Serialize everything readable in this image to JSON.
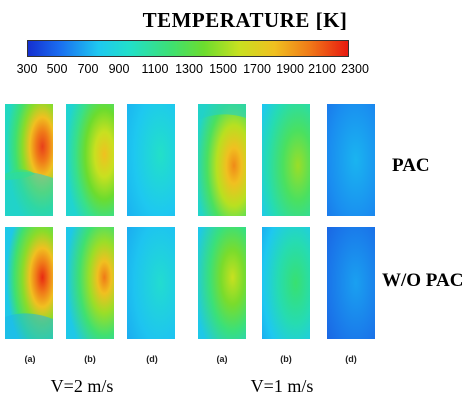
{
  "title": "TEMPERATURE [K]",
  "colorbar": {
    "ticks": [
      "300",
      "500",
      "700",
      "900",
      "1100",
      "1300",
      "1500",
      "1700",
      "1900",
      "2100",
      "2300"
    ]
  },
  "rows": [
    "PAC",
    "W/O PAC"
  ],
  "sublabels": [
    "(a)",
    "(b)",
    "(d)",
    "(a)",
    "(b)",
    "(d)"
  ],
  "velocities": [
    "V=2 m/s",
    "V=1 m/s"
  ],
  "colors": {
    "cold": "#1530d0",
    "cool": "#1ec8f0",
    "mid": "#3fe070",
    "warm": "#f0c020",
    "hot": "#e81a10"
  }
}
